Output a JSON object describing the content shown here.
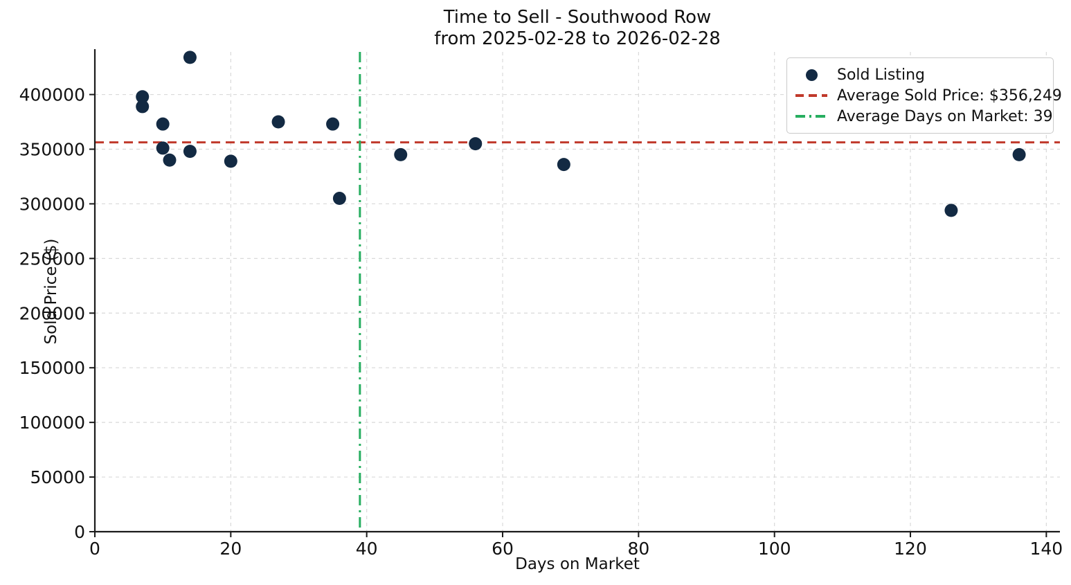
{
  "title": {
    "line1": "Time to Sell - Southwood Row",
    "line2": "from 2025-02-28 to 2026-02-28"
  },
  "axes": {
    "x_label": "Days on Market",
    "y_label": "Sold Price ($)"
  },
  "legend": {
    "position": "upper right",
    "items": [
      {
        "label": "Sold Listing",
        "marker": "dot",
        "color": "#132A43"
      },
      {
        "label": "Average Sold Price: $356,249",
        "marker": "dashed-line",
        "color": "#C0392B"
      },
      {
        "label": "Average Days on Market: 39",
        "marker": "dashdot-line",
        "color": "#27AE60"
      }
    ]
  },
  "chart_data": {
    "type": "scatter",
    "title": "Time to Sell - Southwood Row",
    "subtitle": "from 2025-02-28 to 2026-02-28",
    "xlabel": "Days on Market",
    "ylabel": "Sold Price ($)",
    "xlim": [
      0,
      142
    ],
    "ylim": [
      0,
      439000
    ],
    "x_ticks": [
      0,
      20,
      40,
      60,
      80,
      100,
      120,
      140
    ],
    "y_ticks": [
      0,
      50000,
      100000,
      150000,
      200000,
      250000,
      300000,
      350000,
      400000
    ],
    "grid": true,
    "legend_position": "upper right",
    "series_label": "Sold Listing",
    "point_format": [
      "days_on_market",
      "sold_price_usd"
    ],
    "points": [
      [
        7,
        398000
      ],
      [
        7,
        389000
      ],
      [
        10,
        373000
      ],
      [
        10,
        351000
      ],
      [
        11,
        340000
      ],
      [
        14,
        434000
      ],
      [
        14,
        348000
      ],
      [
        20,
        339000
      ],
      [
        27,
        375000
      ],
      [
        35,
        373000
      ],
      [
        36,
        305000
      ],
      [
        45,
        345000
      ],
      [
        56,
        355000
      ],
      [
        69,
        336000
      ],
      [
        126,
        294000
      ],
      [
        136,
        345000
      ]
    ],
    "average_sold_price": 356249,
    "average_sold_price_label": "Average Sold Price: $356,249",
    "average_days_on_market": 39,
    "average_days_on_market_label": "Average Days on Market: 39",
    "colors": {
      "point": "#132A43",
      "avg_price_line": "#C0392B",
      "avg_days_line": "#27AE60"
    }
  }
}
